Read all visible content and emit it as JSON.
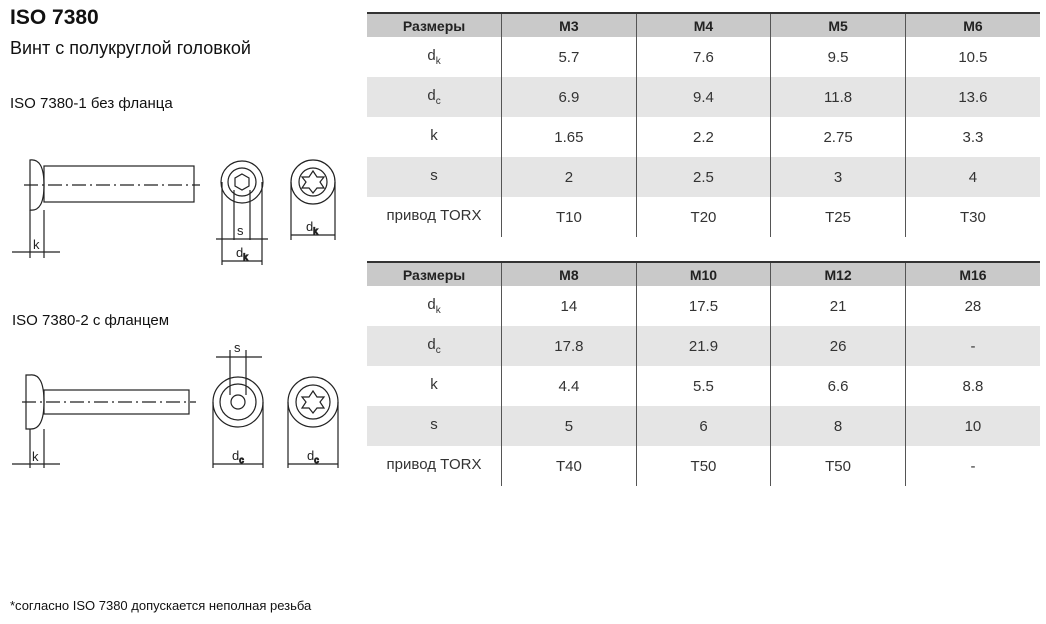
{
  "title": "ISO 7380",
  "subtitle": "Винт с полукруглой головкой",
  "variant1_label": "ISO 7380-1 без фланца",
  "variant2_label": "ISO 7380-2 с фланцем",
  "footnote": "*согласно ISO 7380 допускается неполная резьба",
  "drawing_labels": {
    "k": "k",
    "s": "s",
    "d": "d",
    "sub_k": "k",
    "sub_c": "c"
  },
  "table1": {
    "headers": [
      "Размеры",
      "M3",
      "M4",
      "M5",
      "M6"
    ],
    "rows": [
      {
        "label": "d",
        "sub": "k",
        "values": [
          "5.7",
          "7.6",
          "9.5",
          "10.5"
        ]
      },
      {
        "label": "d",
        "sub": "c",
        "values": [
          "6.9",
          "9.4",
          "11.8",
          "13.6"
        ]
      },
      {
        "label": "k",
        "sub": "",
        "values": [
          "1.65",
          "2.2",
          "2.75",
          "3.3"
        ]
      },
      {
        "label": "s",
        "sub": "",
        "values": [
          "2",
          "2.5",
          "3",
          "4"
        ]
      },
      {
        "label": "привод TORX",
        "sub": "",
        "values": [
          "T10",
          "T20",
          "T25",
          "T30"
        ]
      }
    ]
  },
  "table2": {
    "headers": [
      "Размеры",
      "M8",
      "M10",
      "M12",
      "M16"
    ],
    "rows": [
      {
        "label": "d",
        "sub": "k",
        "values": [
          "14",
          "17.5",
          "21",
          "28"
        ]
      },
      {
        "label": "d",
        "sub": "c",
        "values": [
          "17.8",
          "21.9",
          "26",
          "-"
        ]
      },
      {
        "label": "k",
        "sub": "",
        "values": [
          "4.4",
          "5.5",
          "6.6",
          "8.8"
        ]
      },
      {
        "label": "s",
        "sub": "",
        "values": [
          "5",
          "6",
          "8",
          "10"
        ]
      },
      {
        "label": "привод TORX",
        "sub": "",
        "values": [
          "T40",
          "T50",
          "T50",
          "-"
        ]
      }
    ]
  }
}
